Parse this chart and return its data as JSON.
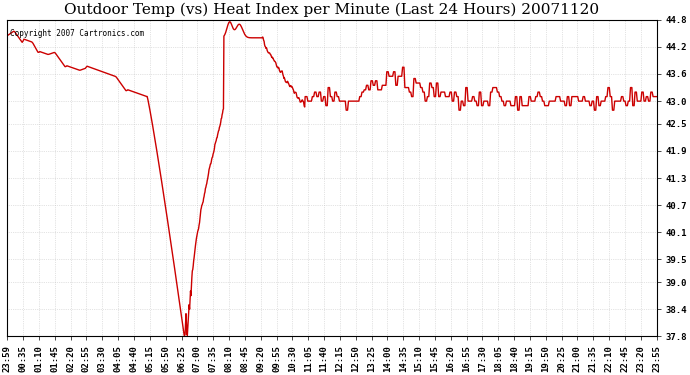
{
  "title": "Outdoor Temp (vs) Heat Index per Minute (Last 24 Hours) 20071120",
  "copyright_text": "Copyright 2007 Cartronics.com",
  "line_color": "#cc0000",
  "background_color": "#ffffff",
  "grid_color": "#bbbbbb",
  "ylim": [
    37.8,
    44.8
  ],
  "yticks": [
    37.8,
    38.4,
    39.0,
    39.5,
    40.1,
    40.7,
    41.3,
    41.9,
    42.5,
    43.0,
    43.6,
    44.2,
    44.8
  ],
  "xtick_labels": [
    "23:59",
    "00:35",
    "01:10",
    "01:45",
    "02:20",
    "02:55",
    "03:30",
    "04:05",
    "04:40",
    "05:15",
    "05:50",
    "06:25",
    "07:00",
    "07:35",
    "08:10",
    "08:45",
    "09:20",
    "09:55",
    "10:30",
    "11:05",
    "11:40",
    "12:15",
    "12:50",
    "13:25",
    "14:00",
    "14:35",
    "15:10",
    "15:45",
    "16:20",
    "16:55",
    "17:30",
    "18:05",
    "18:40",
    "19:15",
    "19:50",
    "20:25",
    "21:00",
    "21:35",
    "22:10",
    "22:45",
    "23:20",
    "23:55"
  ],
  "title_fontsize": 11,
  "tick_fontsize": 6.5,
  "line_width": 1.0,
  "figsize": [
    6.9,
    3.75
  ],
  "dpi": 100
}
